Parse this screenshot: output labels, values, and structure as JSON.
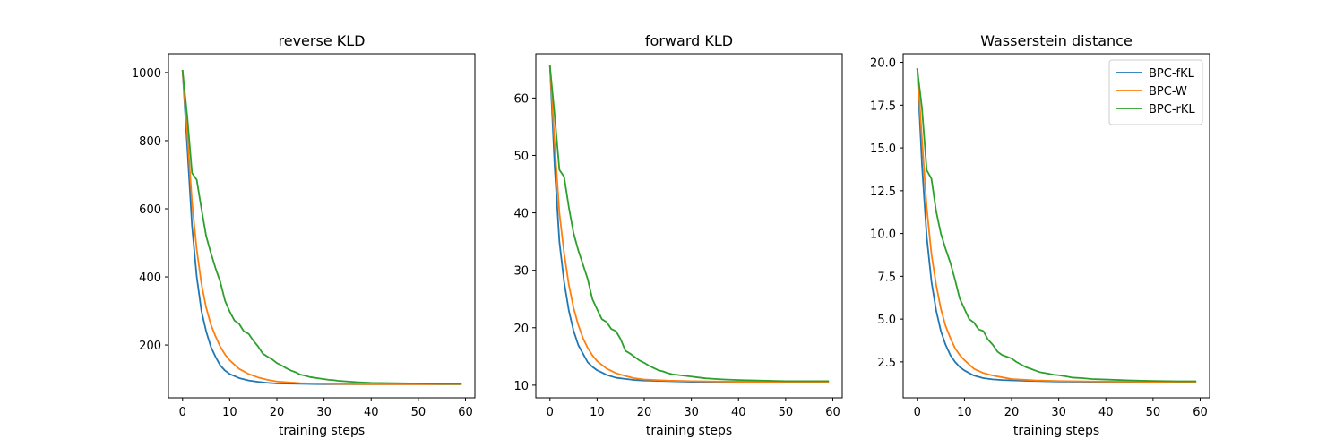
{
  "chart_data": [
    {
      "type": "line",
      "title": "reverse KLD",
      "xlabel": "training steps",
      "ylabel": "",
      "xlim": [
        -3,
        62
      ],
      "ylim": [
        45,
        1055
      ],
      "xticks": [
        0,
        10,
        20,
        30,
        40,
        50,
        60
      ],
      "yticks": [
        200,
        400,
        600,
        800,
        1000
      ],
      "yfmt": 0,
      "legend": false,
      "series": [
        {
          "name": "BPC-fKL",
          "color": "#1f77b4",
          "x": [
            0,
            1,
            2,
            3,
            4,
            5,
            6,
            7,
            8,
            9,
            10,
            12,
            14,
            16,
            18,
            20,
            25,
            30,
            40,
            50,
            59
          ],
          "y": [
            1005,
            780,
            550,
            400,
            300,
            240,
            195,
            165,
            140,
            125,
            115,
            103,
            96,
            92,
            89,
            87,
            86,
            85,
            85,
            85,
            85
          ]
        },
        {
          "name": "BPC-W",
          "color": "#ff7f0e",
          "x": [
            0,
            1,
            2,
            3,
            4,
            5,
            6,
            7,
            8,
            9,
            10,
            12,
            14,
            16,
            18,
            20,
            25,
            30,
            40,
            50,
            59
          ],
          "y": [
            1005,
            820,
            620,
            480,
            380,
            310,
            260,
            225,
            195,
            172,
            155,
            130,
            115,
            105,
            98,
            93,
            88,
            86,
            85,
            85,
            85
          ]
        },
        {
          "name": "BPC-rKL",
          "color": "#2ca02c",
          "x": [
            0,
            1,
            2,
            3,
            4,
            5,
            6,
            7,
            8,
            9,
            10,
            11,
            12,
            13,
            14,
            15,
            16,
            17,
            18,
            19,
            20,
            21,
            22,
            23,
            24,
            25,
            26,
            27,
            28,
            29,
            30,
            31,
            32,
            33,
            35,
            37,
            40,
            45,
            50,
            55,
            59
          ],
          "y": [
            1005,
            870,
            705,
            685,
            600,
            520,
            470,
            425,
            385,
            330,
            298,
            272,
            262,
            240,
            233,
            213,
            196,
            175,
            166,
            158,
            147,
            140,
            132,
            125,
            120,
            113,
            110,
            106,
            104,
            102,
            100,
            98,
            97,
            95,
            93,
            91,
            89,
            88,
            87,
            86,
            86
          ]
        }
      ]
    },
    {
      "type": "line",
      "title": "forward KLD",
      "xlabel": "training steps",
      "ylabel": "",
      "xlim": [
        -3,
        62
      ],
      "ylim": [
        7.8,
        67.7
      ],
      "xticks": [
        0,
        10,
        20,
        30,
        40,
        50,
        60
      ],
      "yticks": [
        10,
        20,
        30,
        40,
        50,
        60
      ],
      "yfmt": 0,
      "legend": false,
      "series": [
        {
          "name": "BPC-fKL",
          "color": "#1f77b4",
          "x": [
            0,
            1,
            2,
            3,
            4,
            5,
            6,
            7,
            8,
            9,
            10,
            12,
            14,
            16,
            18,
            20,
            25,
            30,
            40,
            50,
            59
          ],
          "y": [
            65.5,
            48,
            35,
            28,
            23,
            19.5,
            17,
            15.5,
            14,
            13.2,
            12.6,
            11.8,
            11.3,
            11.1,
            10.9,
            10.8,
            10.7,
            10.6,
            10.6,
            10.6,
            10.6
          ]
        },
        {
          "name": "BPC-W",
          "color": "#ff7f0e",
          "x": [
            0,
            1,
            2,
            3,
            4,
            5,
            6,
            7,
            8,
            9,
            10,
            12,
            14,
            16,
            18,
            20,
            25,
            30,
            40,
            50,
            59
          ],
          "y": [
            65.5,
            52,
            40,
            33,
            27.5,
            23.5,
            20.5,
            18.2,
            16.5,
            15.2,
            14.2,
            12.9,
            12.1,
            11.6,
            11.2,
            11,
            10.8,
            10.7,
            10.6,
            10.6,
            10.6
          ]
        },
        {
          "name": "BPC-rKL",
          "color": "#2ca02c",
          "x": [
            0,
            1,
            2,
            3,
            4,
            5,
            6,
            7,
            8,
            9,
            10,
            11,
            12,
            13,
            14,
            15,
            16,
            17,
            18,
            19,
            20,
            21,
            22,
            23,
            24,
            25,
            26,
            27,
            28,
            29,
            30,
            31,
            32,
            33,
            35,
            37,
            40,
            45,
            50,
            55,
            59
          ],
          "y": [
            65.5,
            57,
            47.5,
            46.3,
            41,
            36.5,
            33.5,
            31,
            28.5,
            25,
            23.2,
            21.5,
            21,
            19.8,
            19.4,
            18,
            16,
            15.5,
            14.9,
            14.3,
            13.9,
            13.4,
            13,
            12.6,
            12.4,
            12.1,
            11.9,
            11.8,
            11.7,
            11.6,
            11.5,
            11.4,
            11.3,
            11.2,
            11.1,
            11,
            10.9,
            10.8,
            10.7,
            10.7,
            10.7
          ]
        }
      ]
    },
    {
      "type": "line",
      "title": "Wasserstein distance",
      "xlabel": "training steps",
      "ylabel": "",
      "xlim": [
        -3,
        62
      ],
      "ylim": [
        0.4,
        20.5
      ],
      "xticks": [
        0,
        10,
        20,
        30,
        40,
        50,
        60
      ],
      "yticks": [
        2.5,
        5.0,
        7.5,
        10.0,
        12.5,
        15.0,
        17.5,
        20.0
      ],
      "yfmt": 1,
      "legend": true,
      "legend_loc": "upper right",
      "series": [
        {
          "name": "BPC-fKL",
          "color": "#1f77b4",
          "x": [
            0,
            1,
            2,
            3,
            4,
            5,
            6,
            7,
            8,
            9,
            10,
            12,
            14,
            16,
            18,
            20,
            25,
            30,
            40,
            50,
            59
          ],
          "y": [
            19.6,
            14,
            9.8,
            7.2,
            5.5,
            4.3,
            3.5,
            2.9,
            2.5,
            2.2,
            2,
            1.7,
            1.55,
            1.48,
            1.44,
            1.42,
            1.38,
            1.35,
            1.33,
            1.33,
            1.33
          ]
        },
        {
          "name": "BPC-W",
          "color": "#ff7f0e",
          "x": [
            0,
            1,
            2,
            3,
            4,
            5,
            6,
            7,
            8,
            9,
            10,
            12,
            14,
            16,
            18,
            20,
            25,
            30,
            40,
            50,
            59
          ],
          "y": [
            19.6,
            15.5,
            11.5,
            8.8,
            7,
            5.6,
            4.6,
            3.9,
            3.3,
            2.9,
            2.6,
            2.1,
            1.85,
            1.7,
            1.6,
            1.5,
            1.42,
            1.38,
            1.35,
            1.34,
            1.33
          ]
        },
        {
          "name": "BPC-rKL",
          "color": "#2ca02c",
          "x": [
            0,
            1,
            2,
            3,
            4,
            5,
            6,
            7,
            8,
            9,
            10,
            11,
            12,
            13,
            14,
            15,
            16,
            17,
            18,
            19,
            20,
            21,
            22,
            23,
            24,
            25,
            26,
            27,
            28,
            29,
            30,
            31,
            32,
            33,
            35,
            37,
            40,
            45,
            50,
            55,
            59
          ],
          "y": [
            19.6,
            17.3,
            13.7,
            13.2,
            11.3,
            10,
            9.1,
            8.3,
            7.3,
            6.2,
            5.6,
            5,
            4.8,
            4.4,
            4.3,
            3.8,
            3.5,
            3.1,
            2.9,
            2.8,
            2.7,
            2.5,
            2.35,
            2.2,
            2.1,
            2,
            1.9,
            1.85,
            1.8,
            1.75,
            1.72,
            1.68,
            1.63,
            1.58,
            1.55,
            1.5,
            1.47,
            1.42,
            1.39,
            1.37,
            1.37
          ]
        }
      ]
    }
  ]
}
